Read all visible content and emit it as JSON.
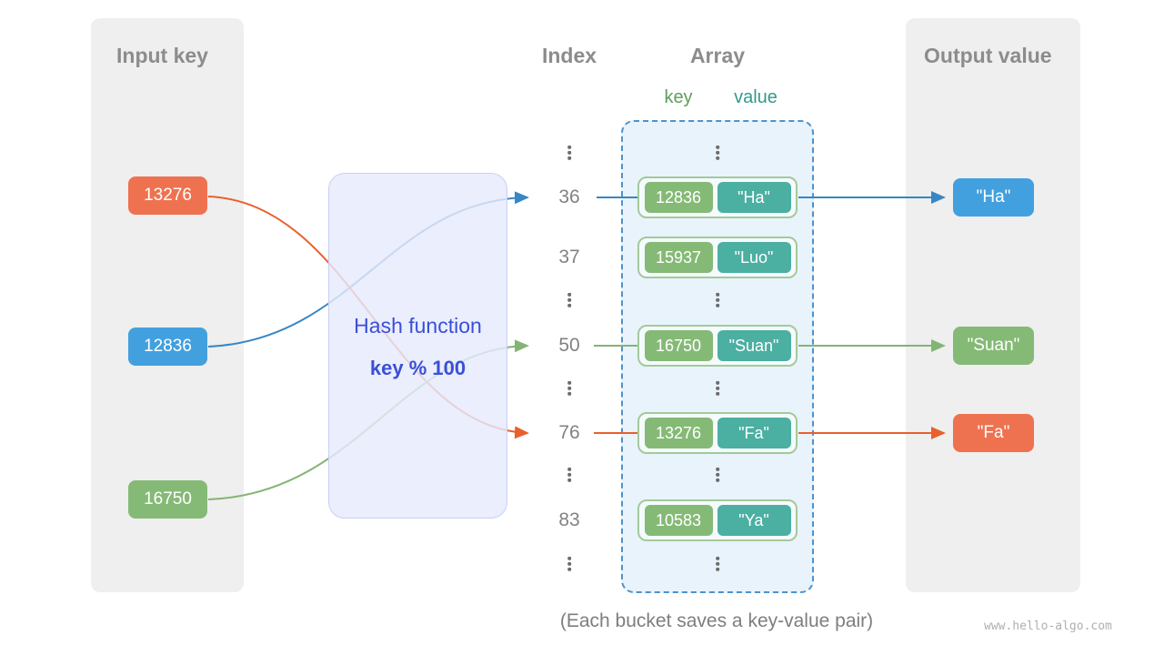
{
  "diagram": {
    "input_panel": {
      "title": "Input key",
      "items": [
        {
          "label": "13276",
          "color": "#EF7250"
        },
        {
          "label": "12836",
          "color": "#42A0DF"
        },
        {
          "label": "16750",
          "color": "#85BA76"
        }
      ]
    },
    "hash_function": {
      "label": "Hash function",
      "formula": "key % 100"
    },
    "index_column": {
      "title": "Index",
      "rows": [
        "⋮",
        "36",
        "37",
        "⋮",
        "50",
        "⋮",
        "76",
        "⋮",
        "83",
        "⋮"
      ]
    },
    "array_panel": {
      "title": "Array",
      "key_header": "key",
      "value_header": "value",
      "rows": [
        {
          "type": "dots",
          "label": "⋮"
        },
        {
          "type": "pair",
          "key": "12836",
          "value": "\"Ha\""
        },
        {
          "type": "pair",
          "key": "15937",
          "value": "\"Luo\""
        },
        {
          "type": "dots",
          "label": "⋮"
        },
        {
          "type": "pair",
          "key": "16750",
          "value": "\"Suan\""
        },
        {
          "type": "dots",
          "label": "⋮"
        },
        {
          "type": "pair",
          "key": "13276",
          "value": "\"Fa\""
        },
        {
          "type": "dots",
          "label": "⋮"
        },
        {
          "type": "pair",
          "key": "10583",
          "value": "\"Ya\""
        },
        {
          "type": "dots",
          "label": "⋮"
        }
      ]
    },
    "output_panel": {
      "title": "Output value",
      "items": [
        {
          "label": "\"Ha\"",
          "color": "#42A0DF"
        },
        {
          "label": "\"Suan\"",
          "color": "#85BA76"
        },
        {
          "label": "\"Fa\"",
          "color": "#EF7250"
        }
      ]
    },
    "caption": "(Each bucket saves a key-value pair)",
    "watermark": "www.hello-algo.com",
    "colors": {
      "arrow_blue": "#3786C5",
      "arrow_green": "#84B474",
      "arrow_orange": "#E9602C",
      "key_box_green": "#85BA76",
      "value_box_teal": "#4BAFA2",
      "hash_text_blue": "#3A4FD8",
      "panel_gray": "#EFEFEF",
      "array_panel_fill": "#E9F3FB",
      "array_panel_border": "#4E92CC"
    }
  }
}
